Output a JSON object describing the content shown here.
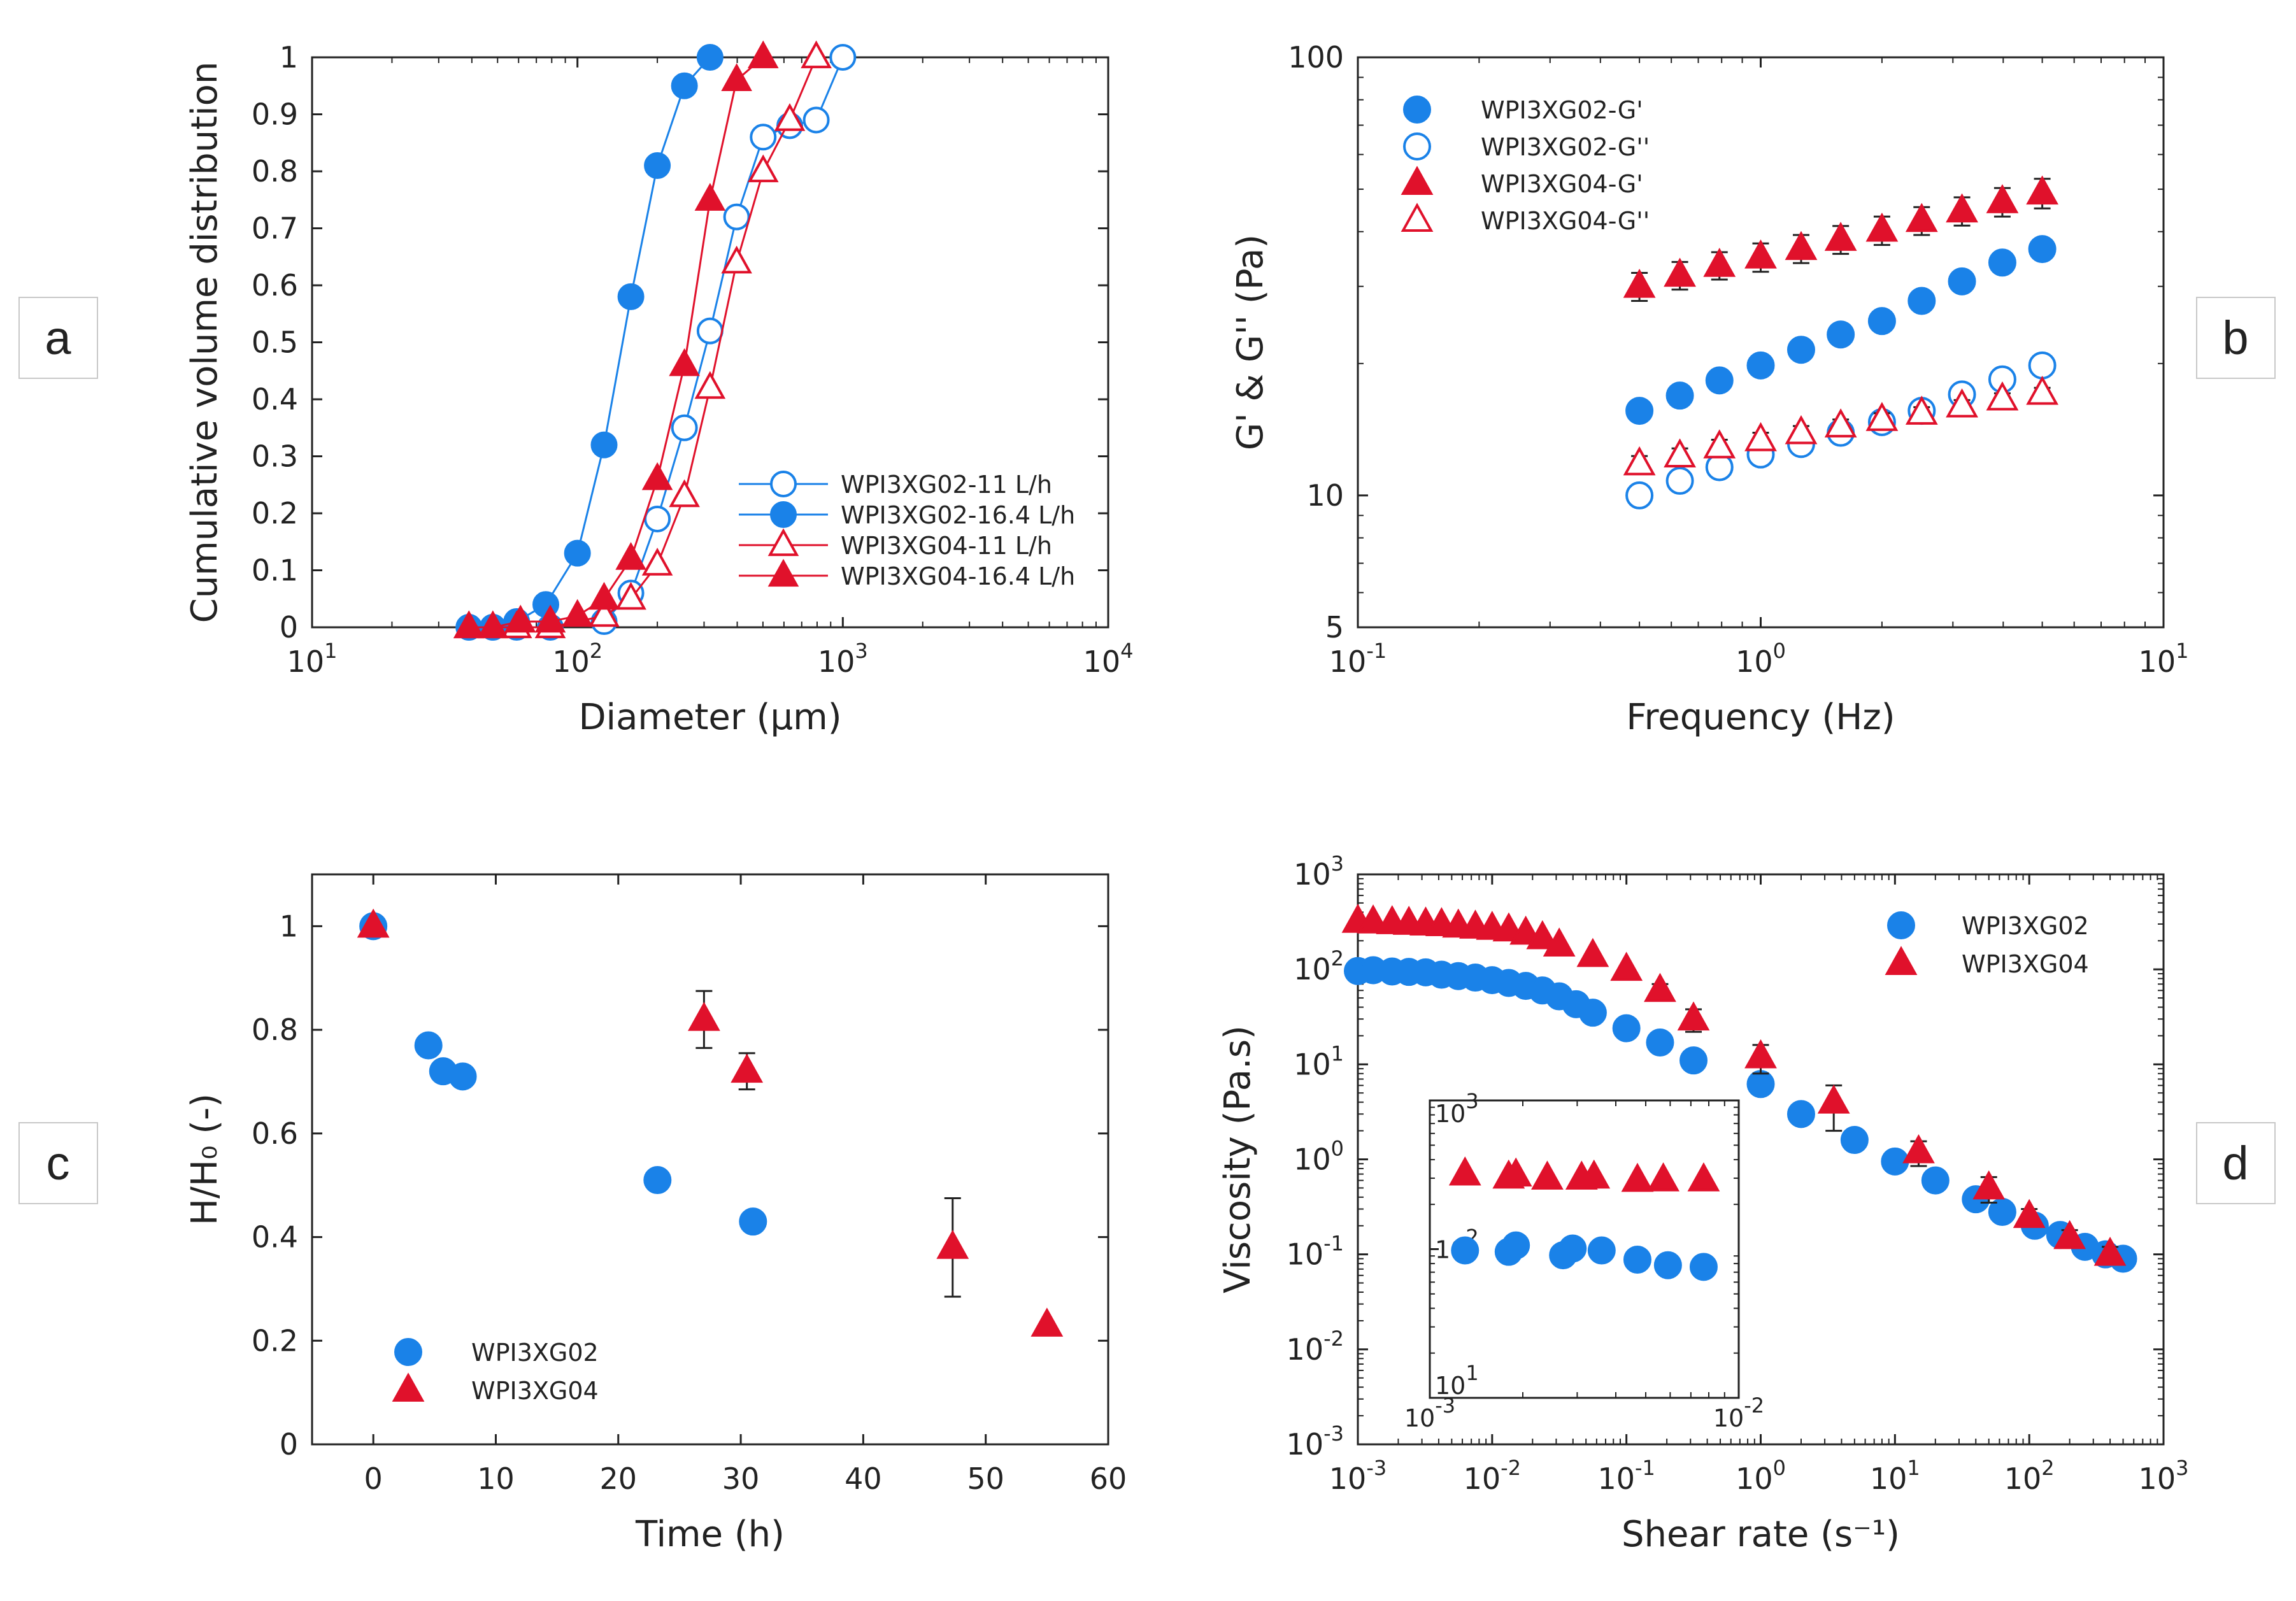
{
  "colors": {
    "blue": "#1a82e8",
    "red": "#e0112b",
    "axis": "#222222",
    "error": "#222222"
  },
  "panels": {
    "a": "a",
    "b": "b",
    "c": "c",
    "d": "d"
  },
  "chart_data": [
    {
      "id": "a",
      "type": "line",
      "title": "",
      "xlabel": "Diameter (μm)",
      "ylabel": "Cumulative volume distribution",
      "xscale": "log",
      "xlim": [
        10,
        10000
      ],
      "ylim": [
        0,
        1
      ],
      "xticks": [
        "10^1",
        "10^2",
        "10^3",
        "10^4"
      ],
      "yticks": [
        "0",
        "0.1",
        "0.2",
        "0.3",
        "0.4",
        "0.5",
        "0.6",
        "0.7",
        "0.8",
        "0.9",
        "1"
      ],
      "legend_position": "lower-right",
      "series": [
        {
          "name": "WPI3XG02-11 L/h",
          "color": "blue",
          "marker": "circle",
          "filled": false,
          "line": true,
          "x": [
            39,
            48,
            59,
            79,
            126,
            159,
            200,
            253,
            316,
            398,
            501,
            631,
            794,
            1000
          ],
          "y": [
            0,
            0,
            0,
            0,
            0.01,
            0.06,
            0.19,
            0.35,
            0.52,
            0.72,
            0.86,
            0.88,
            0.89,
            1.0
          ]
        },
        {
          "name": "WPI3XG02-16.4 L/h",
          "color": "blue",
          "marker": "circle",
          "filled": true,
          "line": true,
          "x": [
            39,
            48,
            59,
            76,
            100,
            126,
            159,
            200,
            253,
            316
          ],
          "y": [
            0,
            0,
            0.01,
            0.04,
            0.13,
            0.32,
            0.58,
            0.81,
            0.95,
            1.0
          ]
        },
        {
          "name": "WPI3XG04-11 L/h",
          "color": "red",
          "marker": "triangle",
          "filled": false,
          "line": true,
          "x": [
            39,
            48,
            59,
            79,
            126,
            159,
            200,
            253,
            316,
            398,
            501,
            631,
            794
          ],
          "y": [
            0,
            0,
            0,
            0,
            0.02,
            0.05,
            0.11,
            0.23,
            0.42,
            0.64,
            0.8,
            0.89,
            1.0
          ]
        },
        {
          "name": "WPI3XG04-16.4 L/h",
          "color": "red",
          "marker": "triangle",
          "filled": true,
          "line": true,
          "x": [
            39,
            48,
            61,
            79,
            100,
            126,
            159,
            200,
            253,
            316,
            398,
            501
          ],
          "y": [
            0,
            0,
            0.01,
            0.01,
            0.02,
            0.05,
            0.12,
            0.26,
            0.46,
            0.75,
            0.96,
            1.0
          ]
        }
      ]
    },
    {
      "id": "b",
      "type": "scatter",
      "title": "",
      "xlabel": "Frequency (Hz)",
      "ylabel": "G' & G'' (Pa)",
      "xscale": "log",
      "yscale": "log",
      "xlim": [
        0.1,
        10
      ],
      "ylim": [
        5,
        100
      ],
      "xticks": [
        "10^-1",
        "10^0",
        "10^1"
      ],
      "yticks": [
        "5",
        "10",
        "100"
      ],
      "legend_position": "top-left",
      "series": [
        {
          "name": "WPI3XG02-G'",
          "color": "blue",
          "marker": "circle",
          "filled": true,
          "x": [
            0.5,
            0.63,
            0.79,
            1.0,
            1.26,
            1.58,
            2.0,
            2.51,
            3.16,
            3.98,
            5.0
          ],
          "y": [
            15.6,
            16.9,
            18.3,
            19.8,
            21.5,
            23.3,
            25.0,
            27.8,
            30.8,
            34.0,
            36.5
          ]
        },
        {
          "name": "WPI3XG02-G''",
          "color": "blue",
          "marker": "circle",
          "filled": false,
          "x": [
            0.5,
            0.63,
            0.79,
            1.0,
            1.26,
            1.58,
            2.0,
            2.51,
            3.16,
            3.98,
            5.0
          ],
          "y": [
            10.0,
            10.8,
            11.6,
            12.4,
            13.1,
            13.9,
            14.7,
            15.6,
            17.0,
            18.4,
            19.8
          ],
          "err": [
            0.3,
            0.3,
            0.3,
            0.3,
            0.3,
            0.3,
            0.3,
            0.3,
            0.4,
            0.5,
            0.6
          ]
        },
        {
          "name": "WPI3XG04-G'",
          "color": "red",
          "marker": "triangle",
          "filled": true,
          "x": [
            0.5,
            0.63,
            0.79,
            1.0,
            1.26,
            1.58,
            2.0,
            2.51,
            3.16,
            3.98,
            5.0
          ],
          "y": [
            30.0,
            31.8,
            33.5,
            35.0,
            36.6,
            38.4,
            40.3,
            42.4,
            44.6,
            46.8,
            49.0
          ],
          "err": [
            2.2,
            2.3,
            2.4,
            2.6,
            2.7,
            2.8,
            3.0,
            3.1,
            3.3,
            3.5,
            3.8
          ]
        },
        {
          "name": "WPI3XG04-G''",
          "color": "red",
          "marker": "triangle",
          "filled": false,
          "x": [
            0.5,
            0.63,
            0.79,
            1.0,
            1.26,
            1.58,
            2.0,
            2.51,
            3.16,
            3.98,
            5.0
          ],
          "y": [
            11.8,
            12.3,
            12.9,
            13.4,
            13.9,
            14.4,
            14.9,
            15.4,
            16.0,
            16.6,
            17.1
          ],
          "err": [
            0.5,
            0.5,
            0.5,
            0.5,
            0.5,
            0.5,
            0.5,
            0.5,
            0.5,
            0.5,
            0.5
          ]
        }
      ]
    },
    {
      "id": "c",
      "type": "scatter",
      "title": "",
      "xlabel": "Time (h)",
      "ylabel": "H/H₀ (-)",
      "xlim": [
        -5,
        60
      ],
      "ylim": [
        0,
        1.1
      ],
      "xticks": [
        "0",
        "10",
        "20",
        "30",
        "40",
        "50",
        "60"
      ],
      "yticks": [
        "0",
        "0.2",
        "0.4",
        "0.6",
        "0.8",
        "1"
      ],
      "legend_position": "bottom-left",
      "series": [
        {
          "name": "WPI3XG02",
          "color": "blue",
          "marker": "circle",
          "filled": true,
          "x": [
            0,
            4.5,
            5.7,
            7.3,
            23.2,
            31.0
          ],
          "y": [
            1.0,
            0.77,
            0.72,
            0.71,
            0.51,
            0.43
          ],
          "err": [
            0,
            0.02,
            0.02,
            0.02,
            0,
            0
          ]
        },
        {
          "name": "WPI3XG04",
          "color": "red",
          "marker": "triangle",
          "filled": true,
          "x": [
            0,
            27.0,
            30.5,
            47.3,
            55.0
          ],
          "y": [
            1.0,
            0.82,
            0.72,
            0.38,
            0.23
          ],
          "err": [
            0,
            0.055,
            0.035,
            0.095,
            0
          ]
        }
      ]
    },
    {
      "id": "d",
      "type": "scatter",
      "title": "",
      "xlabel": "Shear rate (s⁻¹)",
      "ylabel": "Viscosity (Pa.s)",
      "xscale": "log",
      "yscale": "log",
      "xlim": [
        0.001,
        1000
      ],
      "ylim": [
        0.001,
        1000
      ],
      "xticks": [
        "10^-3",
        "10^-2",
        "10^-1",
        "10^0",
        "10^1",
        "10^2",
        "10^3"
      ],
      "yticks": [
        "10^-3",
        "10^-2",
        "10^-1",
        "10^0",
        "10^1",
        "10^2",
        "10^3"
      ],
      "legend_position": "top-right",
      "series": [
        {
          "name": "WPI3XG02",
          "color": "blue",
          "marker": "circle",
          "filled": true,
          "x": [
            0.001,
            0.0013,
            0.0018,
            0.0024,
            0.0032,
            0.0042,
            0.0056,
            0.0075,
            0.01,
            0.0133,
            0.0178,
            0.0237,
            0.0316,
            0.0422,
            0.0562,
            0.1,
            0.178,
            0.316,
            1.0,
            2.0,
            5.0,
            10.0,
            20.0,
            40.0,
            63.0,
            110.0,
            170.0,
            260.0,
            370.0,
            500.0
          ],
          "y": [
            96,
            98,
            95,
            94,
            93,
            88,
            85,
            82,
            77,
            72,
            67,
            60,
            52,
            43,
            35,
            24,
            17,
            11,
            6.2,
            3.0,
            1.6,
            0.95,
            0.6,
            0.38,
            0.28,
            0.2,
            0.16,
            0.12,
            0.1,
            0.09
          ]
        },
        {
          "name": "WPI3XG04",
          "color": "red",
          "marker": "triangle",
          "filled": true,
          "x": [
            0.001,
            0.0013,
            0.0018,
            0.0024,
            0.0032,
            0.0042,
            0.0056,
            0.0075,
            0.01,
            0.0133,
            0.0178,
            0.0237,
            0.0316,
            0.0562,
            0.1,
            0.178,
            0.316,
            1.0,
            3.5,
            15.0,
            50.0,
            100.0,
            200.0,
            400.0
          ],
          "y": [
            320,
            315,
            310,
            305,
            300,
            295,
            285,
            278,
            270,
            260,
            240,
            215,
            180,
            140,
            100,
            60,
            30,
            12,
            4.0,
            1.2,
            0.5,
            0.25,
            0.15,
            0.1
          ],
          "err": [
            0,
            0,
            0,
            0,
            0,
            0,
            0,
            0,
            0,
            0,
            0,
            0,
            0,
            0,
            0,
            10,
            8,
            4,
            2.0,
            0.35,
            0.15,
            0.05,
            0.03,
            0.02
          ]
        }
      ],
      "inset": {
        "xscale": "log",
        "yscale": "log",
        "xlim": [
          0.001,
          0.01
        ],
        "ylim": [
          10,
          1000
        ],
        "xticks": [
          "10^-3",
          "10^-2"
        ],
        "yticks": [
          "10^1",
          "10^2",
          "10^3"
        ],
        "series": [
          {
            "name": "WPI3XG02",
            "color": "blue",
            "marker": "circle",
            "filled": true,
            "x": [
              0.0013,
              0.0018,
              0.0019,
              0.0027,
              0.0029,
              0.0036,
              0.0047,
              0.0059,
              0.0077
            ],
            "y": [
              98,
              96,
              106,
              91,
              101,
              98,
              85,
              78,
              76
            ]
          },
          {
            "name": "WPI3XG04",
            "color": "red",
            "marker": "triangle",
            "filled": true,
            "x": [
              0.0013,
              0.0018,
              0.0019,
              0.0024,
              0.0031,
              0.0034,
              0.0047,
              0.0057,
              0.0077
            ],
            "y": [
              320,
              305,
              315,
              300,
              300,
              305,
              290,
              292,
              292
            ]
          }
        ]
      }
    }
  ]
}
